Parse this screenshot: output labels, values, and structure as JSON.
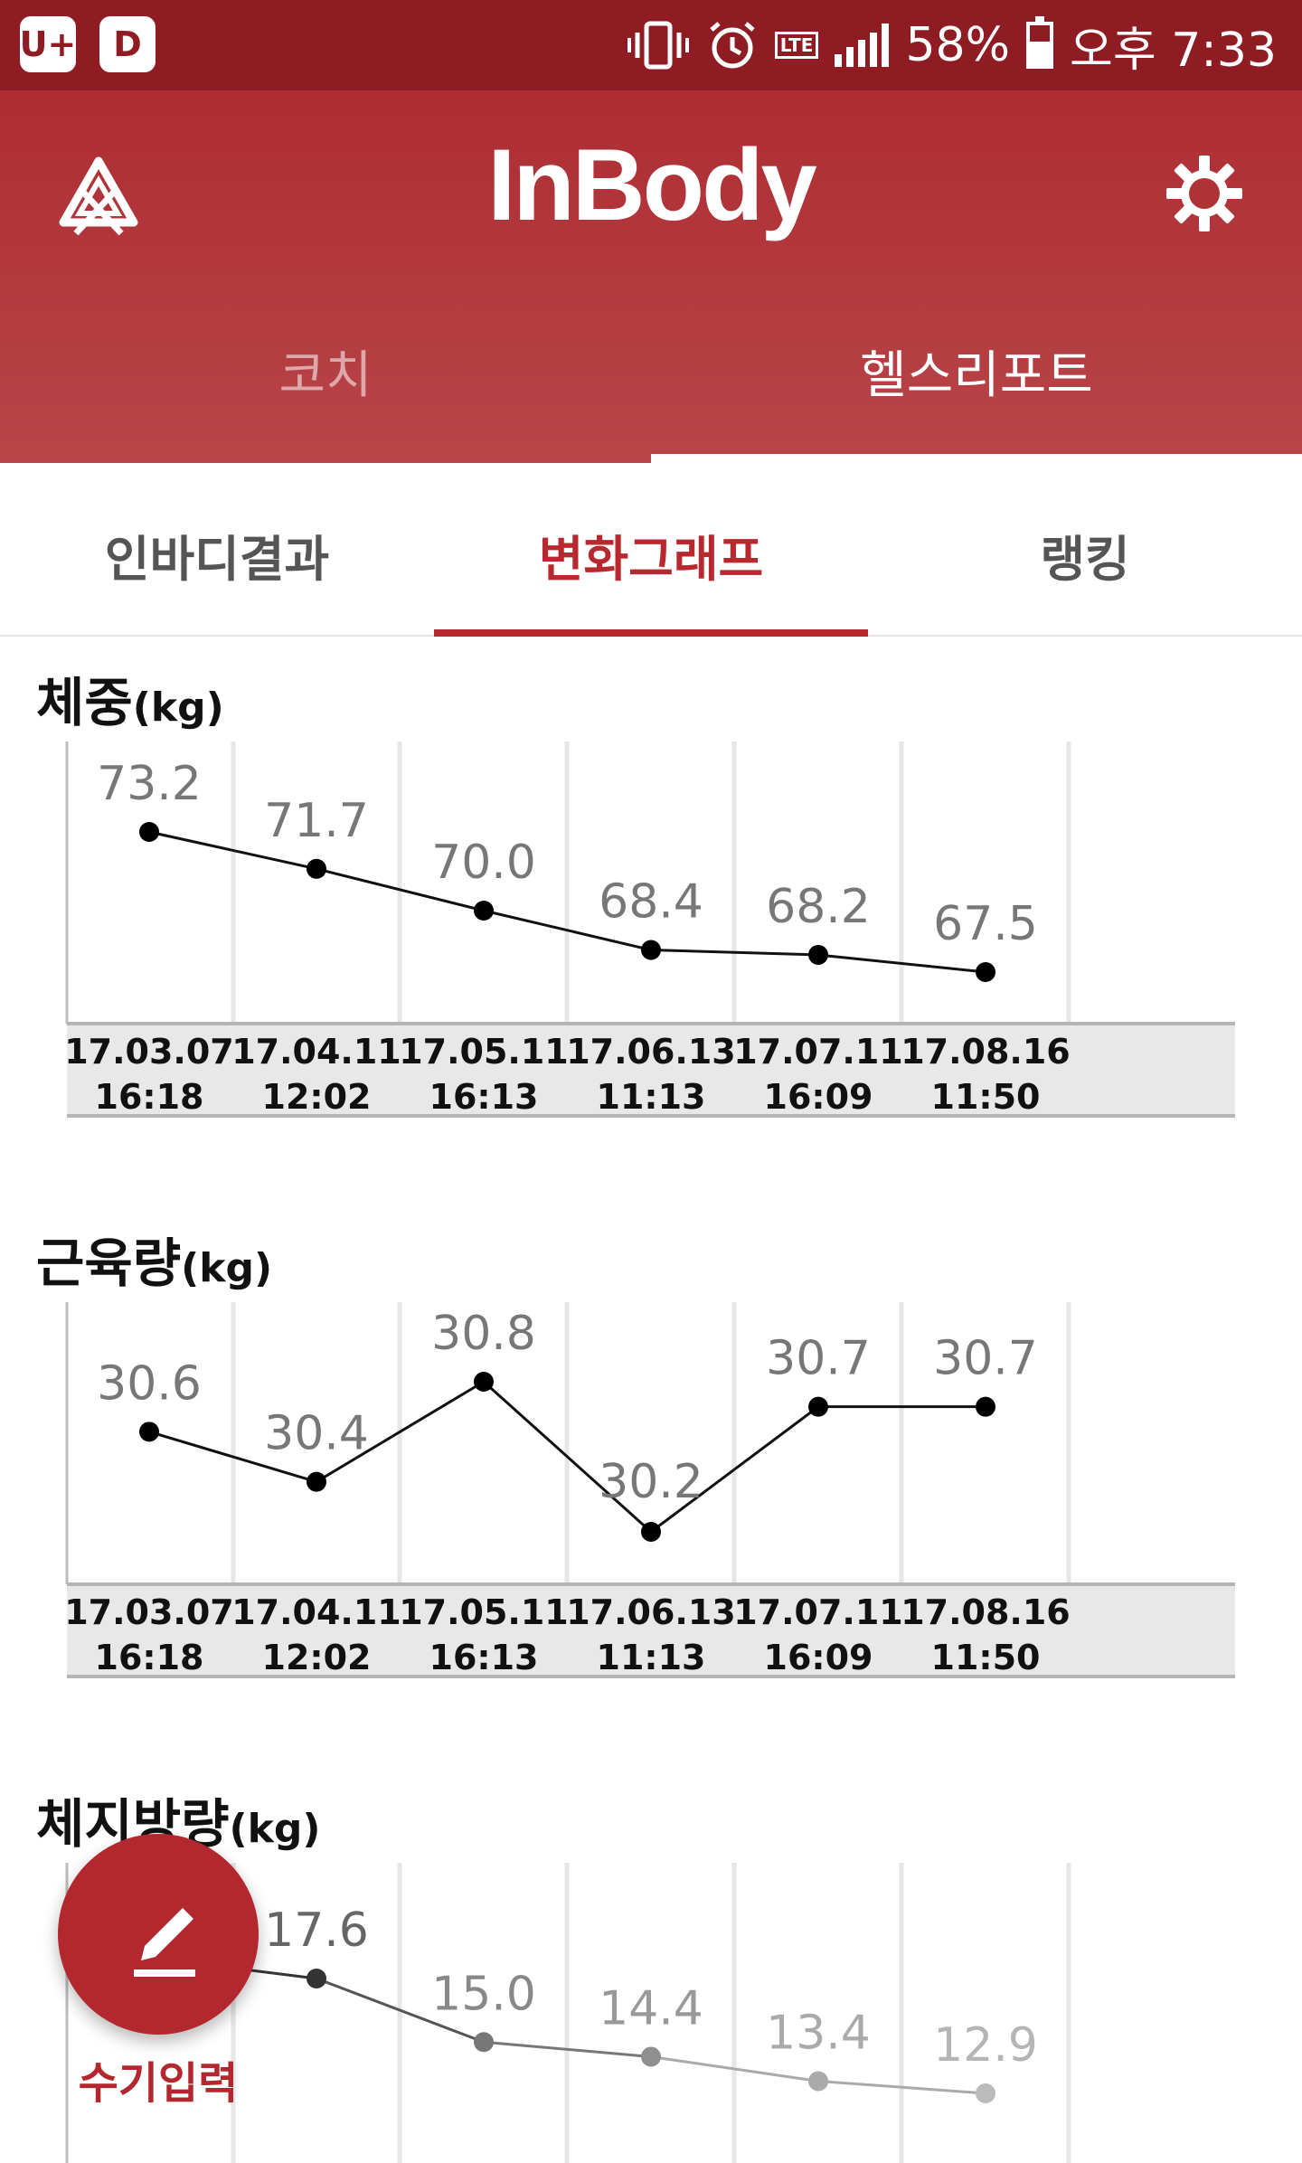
{
  "status_bar": {
    "left_icon_1": "U+",
    "left_icon_2": "D",
    "icons": [
      "vibrate-icon",
      "alarm-icon",
      "lte-icon",
      "signal-icon"
    ],
    "network": "LTE",
    "battery_percent": "58%",
    "battery_level": 0.58,
    "time": "오후 7:33"
  },
  "app_bar": {
    "title": "InBody",
    "menu_icon": "inbody-triangle-logo-icon",
    "settings_icon": "gear-icon"
  },
  "top_tabs": [
    {
      "label": "코치",
      "active": false
    },
    {
      "label": "헬스리포트",
      "active": true
    }
  ],
  "sub_tabs": [
    {
      "label": "인바디결과",
      "active": false
    },
    {
      "label": "변화그래프",
      "active": true
    },
    {
      "label": "랭킹",
      "active": false
    }
  ],
  "charts": [
    {
      "title": "체중",
      "unit": "(kg)",
      "chart_data": {
        "type": "line",
        "dates": [
          "17.03.07",
          "17.04.11",
          "17.05.11",
          "17.06.13",
          "17.07.11",
          "17.08.16"
        ],
        "times": [
          "16:18",
          "12:02",
          "16:13",
          "11:13",
          "16:09",
          "11:50"
        ],
        "values": [
          73.2,
          71.7,
          70.0,
          68.4,
          68.2,
          67.5
        ],
        "labels": [
          "73.2",
          "71.7",
          "70.0",
          "68.4",
          "68.2",
          "67.5"
        ]
      }
    },
    {
      "title": "근육량",
      "unit": "(kg)",
      "chart_data": {
        "type": "line",
        "dates": [
          "17.03.07",
          "17.04.11",
          "17.05.11",
          "17.06.13",
          "17.07.11",
          "17.08.16"
        ],
        "times": [
          "16:18",
          "12:02",
          "16:13",
          "11:13",
          "16:09",
          "11:50"
        ],
        "values": [
          30.6,
          30.4,
          30.8,
          30.2,
          30.7,
          30.7
        ],
        "labels": [
          "30.6",
          "30.4",
          "30.8",
          "30.2",
          "30.7",
          "30.7"
        ]
      }
    },
    {
      "title": "체지방량",
      "unit": "(kg)",
      "chart_data": {
        "type": "line",
        "dates": [],
        "times": [],
        "values": [
          17.6,
          15.0,
          14.4,
          13.4,
          12.9
        ],
        "labels": [
          "17.6",
          "15.0",
          "14.4",
          "13.4",
          "12.9"
        ]
      }
    }
  ],
  "fab": {
    "label": "수기입력",
    "icon": "pencil-icon"
  }
}
